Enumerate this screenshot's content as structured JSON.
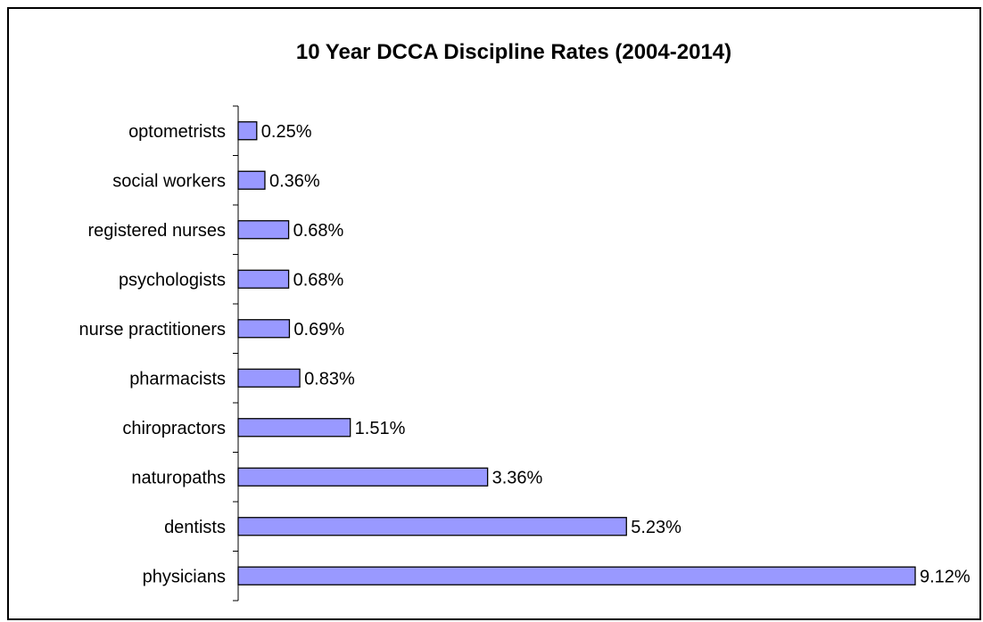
{
  "chart_data": {
    "type": "bar",
    "orientation": "horizontal",
    "title": "10 Year DCCA Discipline Rates (2004-2014)",
    "xlabel": "",
    "ylabel": "",
    "categories": [
      "optometrists",
      "social workers",
      "registered nurses",
      "psychologists",
      "nurse practitioners",
      "pharmacists",
      "chiropractors",
      "naturopaths",
      "dentists",
      "physicians"
    ],
    "values": [
      0.25,
      0.36,
      0.68,
      0.68,
      0.69,
      0.83,
      1.51,
      3.36,
      5.23,
      9.12
    ],
    "value_labels": [
      "0.25%",
      "0.36%",
      "0.68%",
      "0.68%",
      "0.69%",
      "0.83%",
      "1.51%",
      "3.36%",
      "5.23%",
      "9.12%"
    ],
    "unit": "%",
    "xlim": [
      0,
      9.12
    ],
    "grid": false,
    "legend": "none",
    "bar_color": "#9999ff",
    "bar_edge_color": "#000000"
  }
}
